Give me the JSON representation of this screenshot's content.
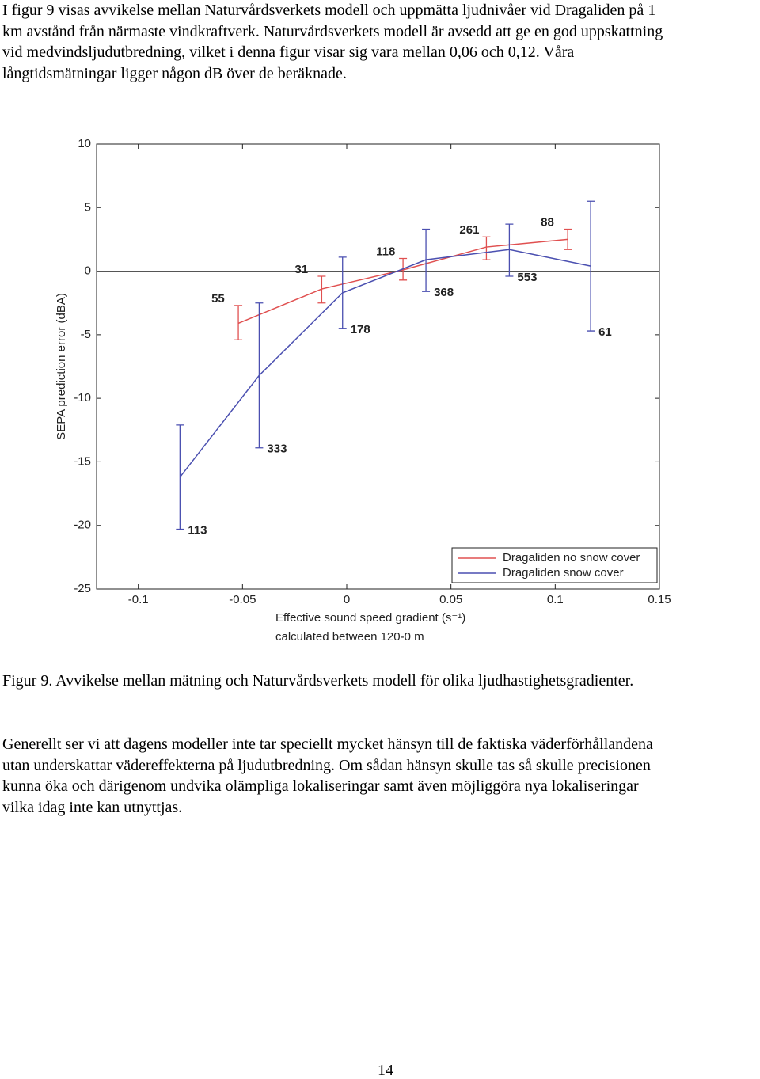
{
  "intro": {
    "lines": [
      "I figur 9 visas avvikelse mellan Naturvårdsverkets modell och uppmätta ljudnivåer vid Dragaliden på 1",
      "km avstånd från närmaste vindkraftverk. Naturvårdsverkets modell är avsedd att ge en god uppskattning",
      "vid medvindsljudutbredning, vilket i denna figur visar sig vara mellan 0,06 och 0,12. Våra",
      "långtidsmätningar ligger någon dB över de beräknade."
    ]
  },
  "chart_data": {
    "type": "errorbar-line",
    "ylabel": "SEPA prediction error (dBA)",
    "xlabel": [
      "Effective sound speed gradient (s⁻¹)",
      "calculated between 120-0 m"
    ],
    "xlim": [
      -0.12,
      0.15
    ],
    "xticks": [
      -0.1,
      -0.05,
      0,
      0.05,
      0.1,
      0.15
    ],
    "ylim": [
      -25,
      10
    ],
    "yticks": [
      -25,
      -20,
      -15,
      -10,
      -5,
      0,
      5,
      10
    ],
    "hline": 0,
    "legend": "lower right",
    "series": [
      {
        "name": "Dragaliden no snow cover",
        "color": "#e05050",
        "x": [
          -0.052,
          -0.012,
          0.027,
          0.067,
          0.106
        ],
        "values": [
          -4.1,
          -1.4,
          0.1,
          1.9,
          2.5
        ],
        "lower": [
          -5.4,
          -2.5,
          -0.7,
          0.9,
          1.7
        ],
        "upper": [
          -2.7,
          -0.4,
          1.0,
          2.7,
          3.3
        ],
        "counts": [
          55,
          31,
          118,
          261,
          88
        ]
      },
      {
        "name": "Dragaliden snow cover",
        "color": "#4a4fb0",
        "x": [
          -0.08,
          -0.042,
          -0.002,
          0.038,
          0.078,
          0.117
        ],
        "values": [
          -16.2,
          -8.2,
          -1.7,
          0.9,
          1.7,
          0.4
        ],
        "lower": [
          -20.3,
          -13.9,
          -4.5,
          -1.6,
          -0.4,
          -4.7
        ],
        "upper": [
          -12.1,
          -2.5,
          1.1,
          3.3,
          3.7,
          5.5
        ],
        "counts": [
          113,
          333,
          178,
          368,
          553,
          61
        ]
      }
    ]
  },
  "caption": "Figur 9. Avvikelse mellan mätning och Naturvårdsverkets modell för olika ljudhastighetsgradienter.",
  "body": {
    "lines": [
      "Generellt ser vi att dagens modeller inte tar speciellt mycket hänsyn till de faktiska väderförhållandena",
      "utan underskattar vädereffekterna på ljudutbredning. Om sådan hänsyn skulle tas så skulle precisionen",
      "kunna öka och därigenom undvika olämpliga lokaliseringar samt även möjliggöra nya lokaliseringar",
      "vilka idag inte kan utnyttjas."
    ]
  },
  "page_number": "14"
}
